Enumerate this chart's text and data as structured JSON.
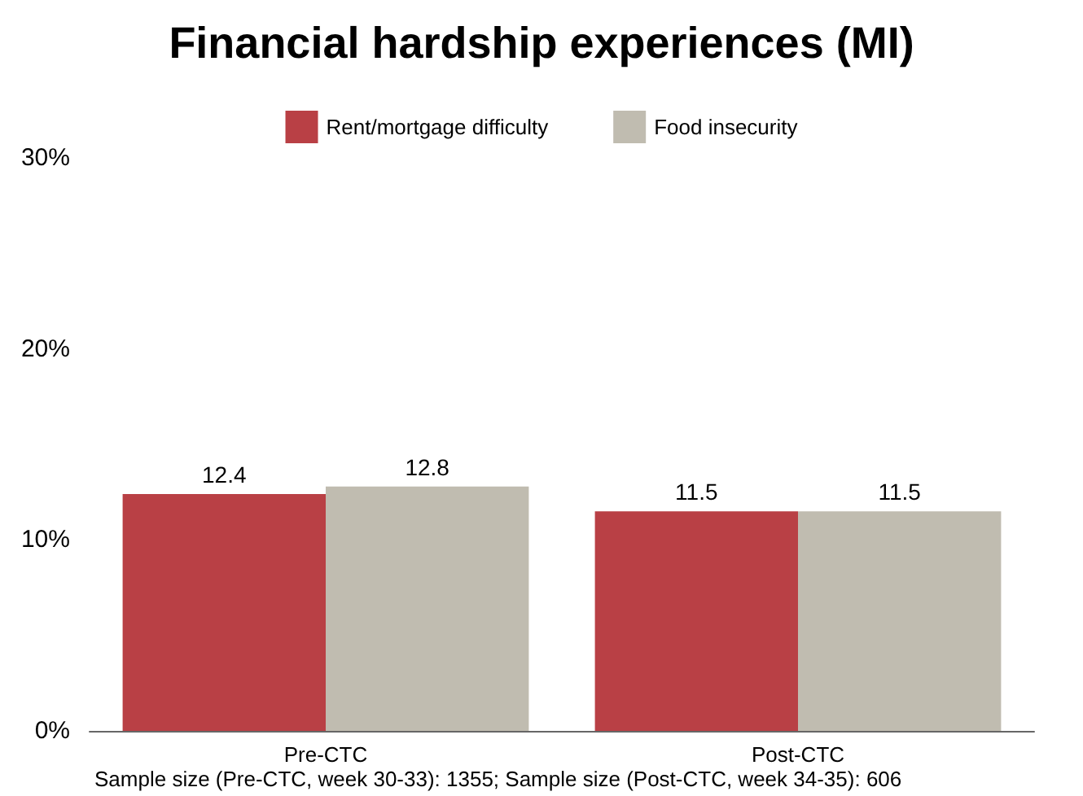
{
  "chart_data": {
    "type": "bar",
    "title": "Financial hardship experiences (MI)",
    "categories": [
      "Pre-CTC",
      "Post-CTC"
    ],
    "series": [
      {
        "name": "Rent/mortgage difficulty",
        "color": "#b94045",
        "values": [
          12.4,
          11.5
        ]
      },
      {
        "name": "Food insecurity",
        "color": "#c0bcb0",
        "values": [
          12.8,
          11.5
        ]
      }
    ],
    "ylim": [
      0,
      30
    ],
    "yticks": [
      {
        "value": 0,
        "label": "0%"
      },
      {
        "value": 10,
        "label": "10%"
      },
      {
        "value": 20,
        "label": "20%"
      },
      {
        "value": 30,
        "label": "30%"
      }
    ],
    "data_labels": true,
    "grid": false,
    "legend": "top",
    "annotations": [
      "Sample size (Pre-CTC, week 30-33): 1355; Sample size (Post-CTC, week 34-35): 606"
    ]
  }
}
